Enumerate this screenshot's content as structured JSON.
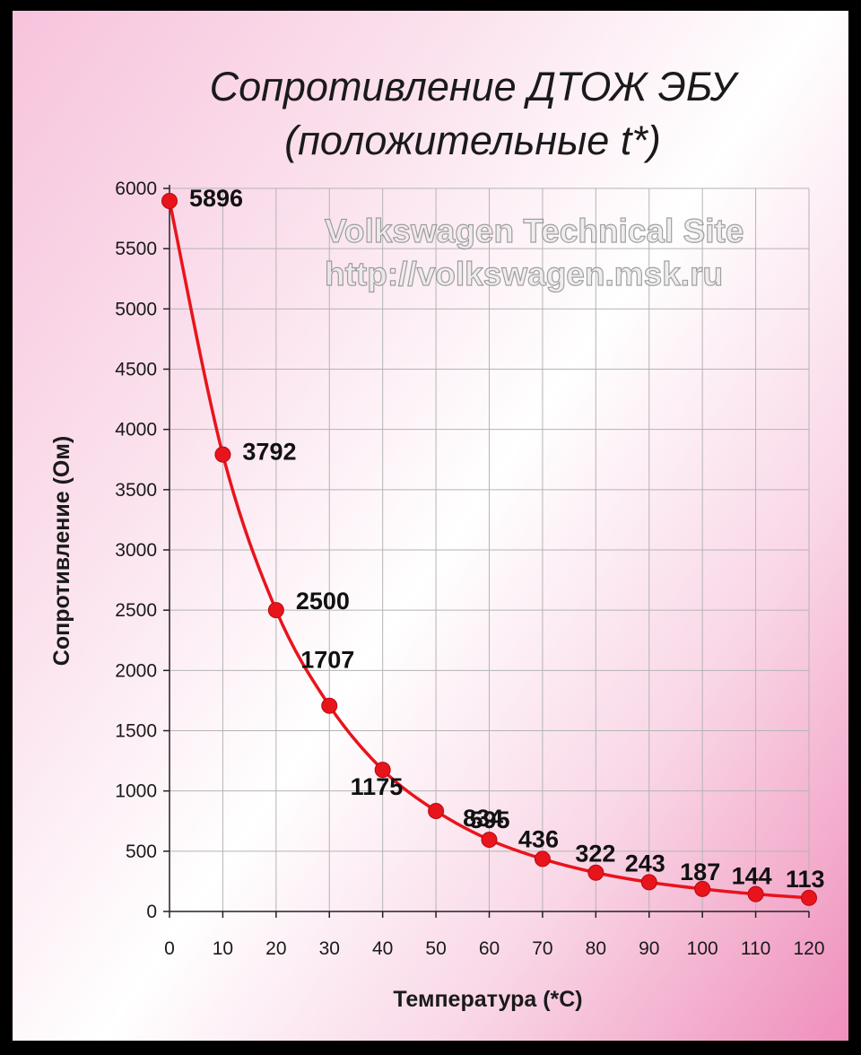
{
  "watermark": {
    "line1": "Volkswagen Technical Site",
    "line2": "http://volkswagen.msk.ru"
  },
  "chart_data": {
    "type": "line",
    "title": "Сопротивление ДТОЖ  ЭБУ",
    "subtitle": "(положительные t*)",
    "xlabel": "Температура (*С)",
    "ylabel": "Сопротивление (Ом)",
    "x": [
      0,
      10,
      20,
      30,
      40,
      50,
      60,
      70,
      80,
      90,
      100,
      110,
      120
    ],
    "series": [
      {
        "values": [
          5896,
          3792,
          2500,
          1707,
          1175,
          834,
          595,
          436,
          322,
          243,
          187,
          144,
          113
        ]
      }
    ],
    "data_labels": [
      "5896",
      "3792",
      "2500",
      "1707",
      "1175",
      "834",
      "595",
      "436",
      "322",
      "243",
      "187",
      "144",
      "113"
    ],
    "xlim": [
      0,
      120
    ],
    "ylim": [
      0,
      6000
    ],
    "xticks": [
      0,
      10,
      20,
      30,
      40,
      50,
      60,
      70,
      80,
      90,
      100,
      110,
      120
    ],
    "yticks": [
      0,
      500,
      1000,
      1500,
      2000,
      2500,
      3000,
      3500,
      4000,
      4500,
      5000,
      5500,
      6000
    ],
    "grid": true,
    "legend": "none",
    "line_color": "#e8141c",
    "marker_color": "#e8141c"
  }
}
